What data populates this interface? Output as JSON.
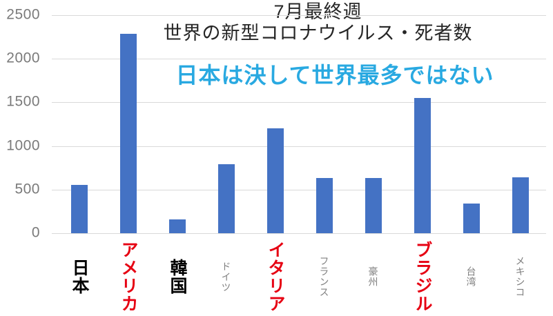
{
  "chart_data": {
    "type": "bar",
    "title_line1": "7月最終週",
    "title_line2": "世界の新型コロナウイルス・死者数",
    "annotation": "日本は決して世界最多ではない",
    "categories": [
      "日本",
      "アメリカ",
      "韓国",
      "ドイツ",
      "イタリア",
      "フランス",
      "豪州",
      "ブラジル",
      "台湾",
      "メキシコ"
    ],
    "values": [
      550,
      2290,
      160,
      790,
      1200,
      630,
      630,
      1550,
      340,
      640
    ],
    "emphasis": [
      "black-bold",
      "red-bold",
      "black-bold",
      "gray-small",
      "red-bold",
      "gray-small",
      "gray-small",
      "red-bold",
      "gray-small",
      "gray-small"
    ],
    "y_ticks": [
      0,
      500,
      1000,
      1500,
      2000,
      2500
    ],
    "ylim": [
      0,
      2500
    ],
    "xlabel": "",
    "ylabel": "",
    "grid": true,
    "legend_position": "none",
    "bar_color": "#4472c4"
  },
  "colors": {
    "bar": "#4472c4",
    "annotation_blue": "#29a9e1",
    "label_red": "#e60012",
    "label_black": "#000000",
    "label_gray": "#7f7f7f",
    "axis_gray": "#7a7a7a",
    "gridline": "#d9d9d9",
    "background": "#ffffff",
    "title_text": "#262626"
  }
}
